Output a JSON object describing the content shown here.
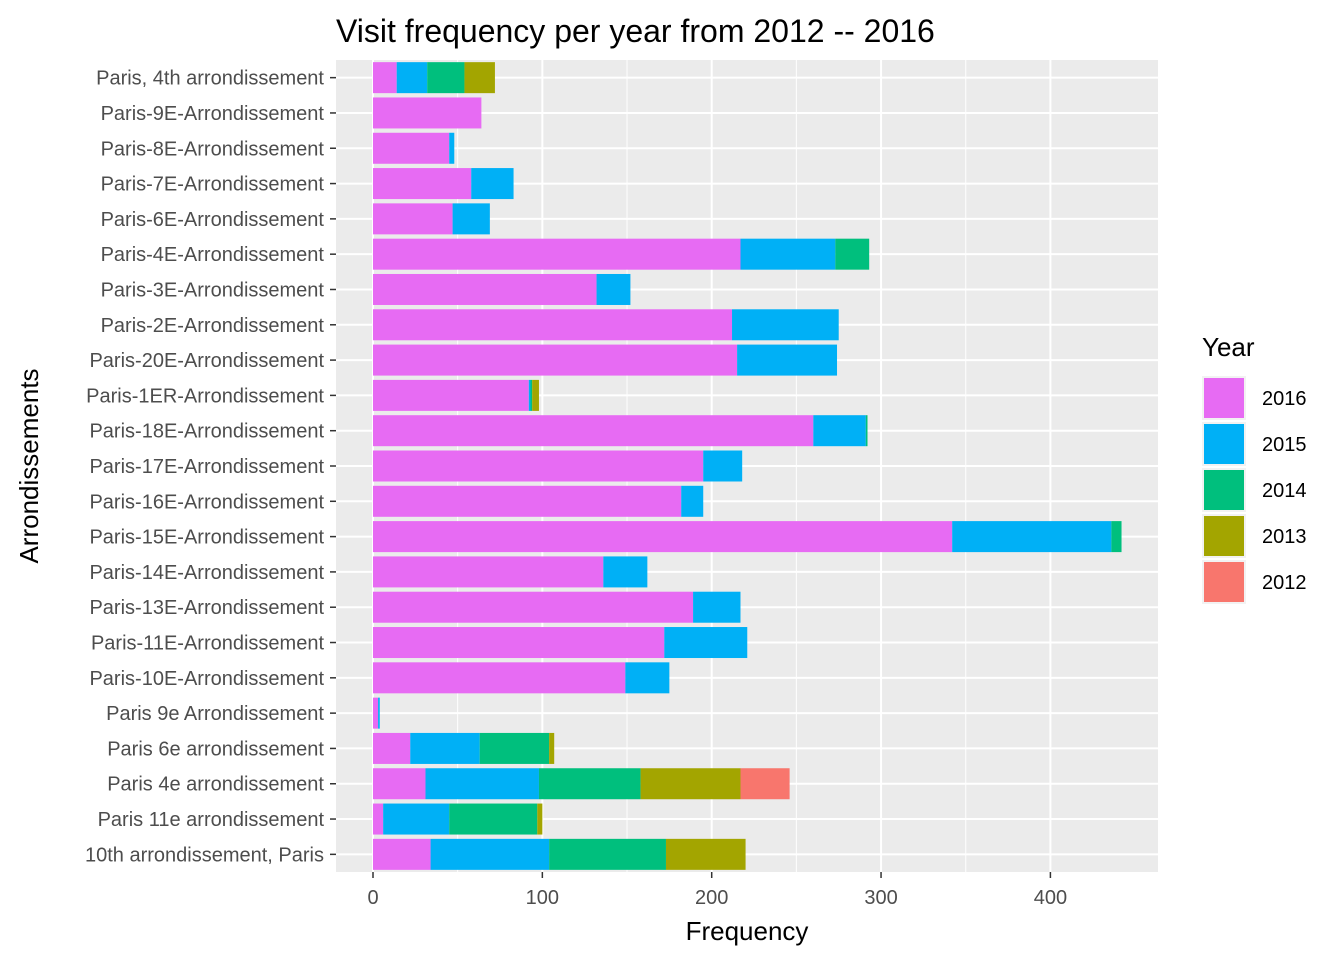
{
  "chart_data": {
    "type": "bar",
    "orientation": "horizontal",
    "stacked": true,
    "title": "Visit frequency per year from 2012 -- 2016",
    "xlabel": "Frequency",
    "ylabel": "Arrondissements",
    "xlim": [
      0,
      460
    ],
    "x_ticks": [
      0,
      100,
      200,
      300,
      400
    ],
    "grid": true,
    "legend_position": "right",
    "legend_title": "Year",
    "categories": [
      "Paris, 4th arrondissement",
      "Paris-9E-Arrondissement",
      "Paris-8E-Arrondissement",
      "Paris-7E-Arrondissement",
      "Paris-6E-Arrondissement",
      "Paris-4E-Arrondissement",
      "Paris-3E-Arrondissement",
      "Paris-2E-Arrondissement",
      "Paris-20E-Arrondissement",
      "Paris-1ER-Arrondissement",
      "Paris-18E-Arrondissement",
      "Paris-17E-Arrondissement",
      "Paris-16E-Arrondissement",
      "Paris-15E-Arrondissement",
      "Paris-14E-Arrondissement",
      "Paris-13E-Arrondissement",
      "Paris-11E-Arrondissement",
      "Paris-10E-Arrondissement",
      "Paris 9e Arrondissement",
      "Paris 6e arrondissement",
      "Paris 4e arrondissement",
      "Paris 11e arrondissement",
      "10th arrondissement, Paris"
    ],
    "series": [
      {
        "name": "2016",
        "color": "#E76BF3",
        "values": [
          14,
          64,
          45,
          58,
          47,
          217,
          132,
          212,
          215,
          92,
          260,
          195,
          182,
          342,
          136,
          189,
          172,
          149,
          3,
          22,
          31,
          6,
          34
        ]
      },
      {
        "name": "2015",
        "color": "#00B0F6",
        "values": [
          18,
          0,
          3,
          25,
          22,
          56,
          20,
          63,
          59,
          1,
          31,
          23,
          13,
          94,
          26,
          28,
          49,
          26,
          1,
          41,
          67,
          39,
          70
        ]
      },
      {
        "name": "2014",
        "color": "#00BF7D",
        "values": [
          22,
          0,
          0,
          0,
          0,
          20,
          0,
          0,
          0,
          1,
          1,
          0,
          0,
          6,
          0,
          0,
          0,
          0,
          0,
          41,
          60,
          52,
          69
        ]
      },
      {
        "name": "2013",
        "color": "#A3A500",
        "values": [
          18,
          0,
          0,
          0,
          0,
          0,
          0,
          0,
          0,
          4,
          0,
          0,
          0,
          0,
          0,
          0,
          0,
          0,
          0,
          3,
          59,
          3,
          47
        ]
      },
      {
        "name": "2012",
        "color": "#F8766D",
        "values": [
          0,
          0,
          0,
          0,
          0,
          0,
          0,
          0,
          0,
          0,
          0,
          0,
          0,
          0,
          0,
          0,
          0,
          0,
          0,
          0,
          29,
          0,
          0
        ]
      }
    ]
  }
}
